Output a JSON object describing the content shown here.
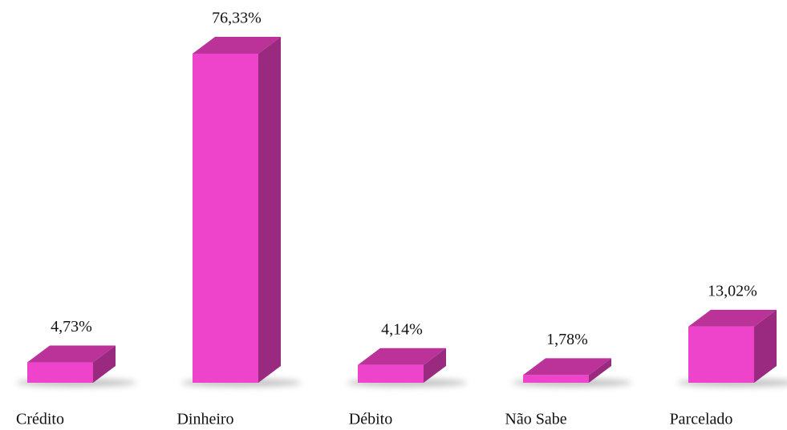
{
  "chart_data": {
    "type": "bar3d",
    "categories": [
      "Crédito",
      "Dinheiro",
      "Débito",
      "Não Sabe",
      "Parcelado"
    ],
    "values": [
      4.73,
      76.33,
      4.14,
      1.78,
      13.02
    ],
    "value_labels": [
      "4,73%",
      "76,33%",
      "4,14%",
      "1,78%",
      "13,02%"
    ],
    "color": "#ee44cc"
  }
}
